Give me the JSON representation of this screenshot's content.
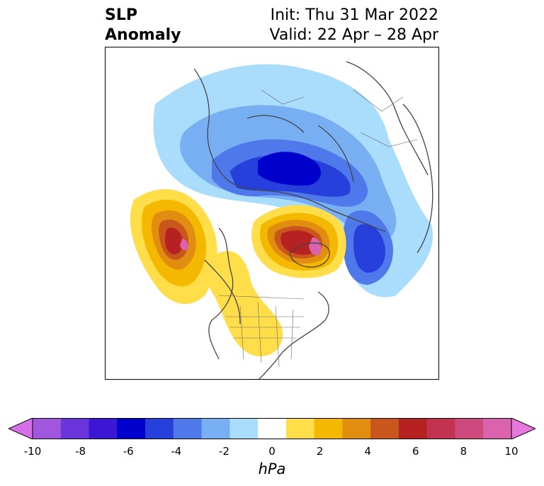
{
  "title": {
    "left_line1": "SLP",
    "left_line2": "Anomaly",
    "init": "Init: Thu 31 Mar 2022",
    "valid": "Valid: 22 Apr – 28 Apr"
  },
  "colorbar": {
    "unit_label": "hPa",
    "ticks": [
      "-10",
      "-8",
      "-6",
      "-4",
      "-2",
      "0",
      "2",
      "4",
      "6",
      "8",
      "10"
    ],
    "colors": [
      "#d66fea",
      "#a156e0",
      "#6a35dd",
      "#3b16d4",
      "#0000cc",
      "#2640db",
      "#4f78ea",
      "#78aff3",
      "#aadcfc",
      "#ffffff",
      "#ffde4a",
      "#f4b800",
      "#e08d10",
      "#c9561b",
      "#b62121",
      "#c33350",
      "#cf4a7c",
      "#db62ac",
      "#e878db"
    ],
    "extend": "both"
  },
  "anomalies": {
    "negative_color_strong": "#0000cc",
    "positive_color_strong": "#b62121"
  }
}
